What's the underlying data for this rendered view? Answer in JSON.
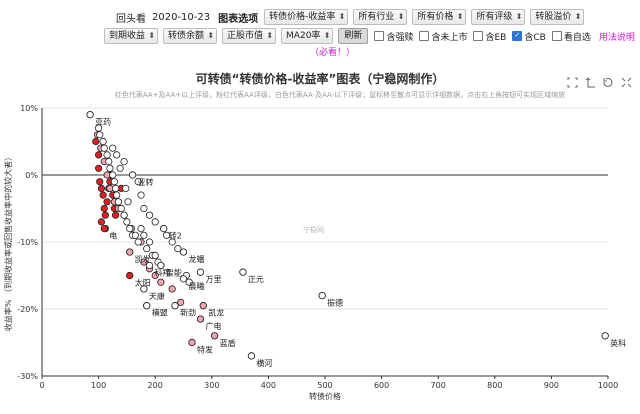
{
  "toolbar": {
    "back_label": "回头看",
    "date": "2020-10-23",
    "chart_option_label": "图表选项",
    "selects_row1": [
      "转债价格-收益率",
      "所有行业",
      "所有价格",
      "所有评级",
      "转股溢价"
    ],
    "selects_row2": [
      "到期收益",
      "转债余额",
      "正股市值",
      "MA20率"
    ],
    "refresh_label": "刷新",
    "checkboxes": [
      {
        "label": "含强赎",
        "checked": false
      },
      {
        "label": "含未上市",
        "checked": false
      },
      {
        "label": "含EB",
        "checked": false
      },
      {
        "label": "含CB",
        "checked": true
      },
      {
        "label": "看自选",
        "checked": false
      }
    ],
    "help_link": "用法说明",
    "must_see": "（必看！）"
  },
  "icons": [
    "zoom-select-icon",
    "zoom-reset-icon",
    "restore-icon",
    "fullscreen-icon"
  ],
  "watermark": "宁稳网",
  "colors": {
    "deep_red": "#e02020",
    "pink": "#f4a4b4",
    "white": "#ffffff",
    "link": "#d11ad1"
  },
  "chart_data": {
    "type": "scatter",
    "title": "可转债“转债价格-收益率”图表（宁稳网制作）",
    "subtitle": "红色代表AA+及AA+以上评级，粉红代表AA评级，白色代表AA-及AA-以下评级；鼠标移至散点可显示详细数据，点击右上角按钮可实现区域缩放",
    "xlabel": "转债价格",
    "ylabel": "收益率% （到期收益率或回售收益率中的较大者）",
    "xlim": [
      0,
      1000
    ],
    "ylim": [
      -30,
      10
    ],
    "x_ticks": [
      0,
      100,
      200,
      300,
      400,
      500,
      600,
      700,
      800,
      900,
      1000
    ],
    "y_ticks": [
      10,
      0,
      -10,
      -20,
      -30
    ],
    "y_tick_labels": [
      "10%",
      "0%",
      "-10%",
      "-20%",
      "-30%"
    ],
    "grid": true,
    "labeled_points": [
      {
        "name": "亚药",
        "x": 85,
        "y": 9,
        "rating": "white"
      },
      {
        "name": "英科",
        "x": 995,
        "y": -24,
        "rating": "white"
      },
      {
        "name": "振德",
        "x": 495,
        "y": -18,
        "rating": "white"
      },
      {
        "name": "正元",
        "x": 355,
        "y": -14.5,
        "rating": "white"
      },
      {
        "name": "横河",
        "x": 370,
        "y": -27,
        "rating": "white"
      },
      {
        "name": "蓝盾",
        "x": 305,
        "y": -24,
        "rating": "pink"
      },
      {
        "name": "特发",
        "x": 265,
        "y": -25,
        "rating": "pink"
      },
      {
        "name": "广电",
        "x": 280,
        "y": -21.5,
        "rating": "pink"
      },
      {
        "name": "凯龙",
        "x": 285,
        "y": -19.5,
        "rating": "pink"
      },
      {
        "name": "万里",
        "x": 280,
        "y": -14.5,
        "rating": "white"
      },
      {
        "name": "晨曦",
        "x": 250,
        "y": -15.5,
        "rating": "white"
      },
      {
        "name": "新劲",
        "x": 235,
        "y": -19.5,
        "rating": "white"
      },
      {
        "name": "横盟",
        "x": 185,
        "y": -19.5,
        "rating": "white"
      },
      {
        "name": "天康",
        "x": 180,
        "y": -17,
        "rating": "white"
      },
      {
        "name": "太阳",
        "x": 155,
        "y": -15,
        "rating": "deep_red"
      },
      {
        "name": "科翔",
        "x": 190,
        "y": -13.5,
        "rating": "white"
      },
      {
        "name": "智能",
        "x": 210,
        "y": -13.5,
        "rating": "white"
      },
      {
        "name": "凯发",
        "x": 155,
        "y": -11.5,
        "rating": "pink"
      },
      {
        "name": "龙蟠",
        "x": 250,
        "y": -11.5,
        "rating": "white"
      },
      {
        "name": "电",
        "x": 110,
        "y": -8,
        "rating": "deep_red"
      },
      {
        "name": "转2",
        "x": 215,
        "y": -8,
        "rating": "white"
      },
      {
        "name": "亚转",
        "x": 160,
        "y": 0,
        "rating": "white"
      }
    ],
    "series": [
      {
        "rating": "deep_red",
        "points": [
          [
            95,
            5
          ],
          [
            100,
            3
          ],
          [
            100,
            1
          ],
          [
            102,
            -1
          ],
          [
            105,
            -2
          ],
          [
            108,
            -3
          ],
          [
            110,
            -5
          ],
          [
            112,
            -6
          ],
          [
            115,
            -4
          ],
          [
            118,
            -2
          ],
          [
            120,
            -1
          ],
          [
            122,
            0
          ],
          [
            125,
            -3
          ],
          [
            128,
            -5
          ],
          [
            130,
            -6
          ],
          [
            112,
            -8
          ],
          [
            140,
            -2
          ],
          [
            155,
            -15
          ],
          [
            105,
            -7
          ]
        ]
      },
      {
        "name": "pink",
        "rating": "pink",
        "points": [
          [
            98,
            6
          ],
          [
            104,
            4
          ],
          [
            110,
            2
          ],
          [
            115,
            0
          ],
          [
            120,
            -2
          ],
          [
            128,
            -4
          ],
          [
            135,
            -5
          ],
          [
            145,
            -6
          ],
          [
            158,
            -8
          ],
          [
            175,
            -10
          ],
          [
            155,
            -11.5
          ],
          [
            180,
            -13
          ],
          [
            190,
            -14
          ],
          [
            200,
            -15
          ],
          [
            210,
            -16
          ],
          [
            230,
            -17
          ],
          [
            265,
            -25
          ],
          [
            280,
            -21.5
          ],
          [
            285,
            -19.5
          ],
          [
            305,
            -24
          ],
          [
            245,
            -19
          ]
        ]
      },
      {
        "rating": "white",
        "points": [
          [
            85,
            9
          ],
          [
            100,
            7
          ],
          [
            102,
            6
          ],
          [
            108,
            5
          ],
          [
            110,
            4
          ],
          [
            115,
            3
          ],
          [
            118,
            2
          ],
          [
            120,
            1
          ],
          [
            125,
            0
          ],
          [
            128,
            -1
          ],
          [
            130,
            -2
          ],
          [
            132,
            -3
          ],
          [
            135,
            -4
          ],
          [
            140,
            -5
          ],
          [
            145,
            -6
          ],
          [
            150,
            -7
          ],
          [
            155,
            -8
          ],
          [
            160,
            -9
          ],
          [
            165,
            -9
          ],
          [
            170,
            -10
          ],
          [
            175,
            -8
          ],
          [
            180,
            -9
          ],
          [
            185,
            -11
          ],
          [
            190,
            -10
          ],
          [
            195,
            -12
          ],
          [
            200,
            -12
          ],
          [
            205,
            -13
          ],
          [
            210,
            -13.5
          ],
          [
            215,
            -8
          ],
          [
            220,
            -9
          ],
          [
            230,
            -10
          ],
          [
            240,
            -11
          ],
          [
            250,
            -11.5
          ],
          [
            255,
            -15
          ],
          [
            260,
            -16
          ],
          [
            280,
            -14.5
          ],
          [
            235,
            -19.5
          ],
          [
            185,
            -19.5
          ],
          [
            180,
            -17
          ],
          [
            355,
            -14.5
          ],
          [
            370,
            -27
          ],
          [
            495,
            -18
          ],
          [
            995,
            -24
          ],
          [
            160,
            0
          ],
          [
            170,
            -1
          ],
          [
            175,
            -3
          ],
          [
            180,
            -5
          ],
          [
            190,
            -6
          ],
          [
            200,
            -7
          ],
          [
            148,
            -2
          ],
          [
            152,
            -4
          ],
          [
            138,
            1
          ],
          [
            145,
            2
          ],
          [
            125,
            4
          ],
          [
            132,
            3
          ]
        ]
      }
    ]
  }
}
